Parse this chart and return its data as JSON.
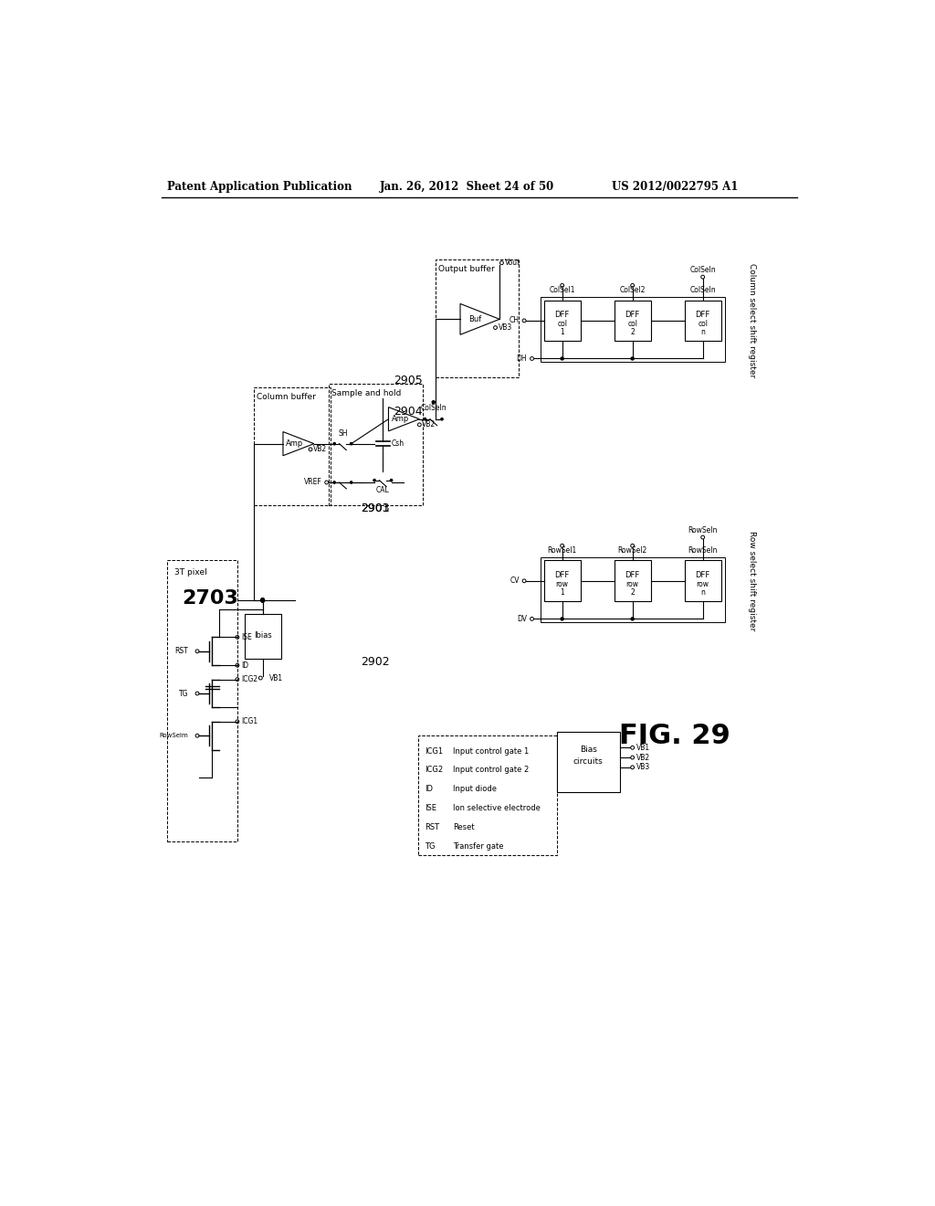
{
  "bg_color": "#ffffff",
  "header_left": "Patent Application Publication",
  "header_mid": "Jan. 26, 2012  Sheet 24 of 50",
  "header_right": "US 2012/0022795 A1",
  "fig_label": "FIG. 29"
}
